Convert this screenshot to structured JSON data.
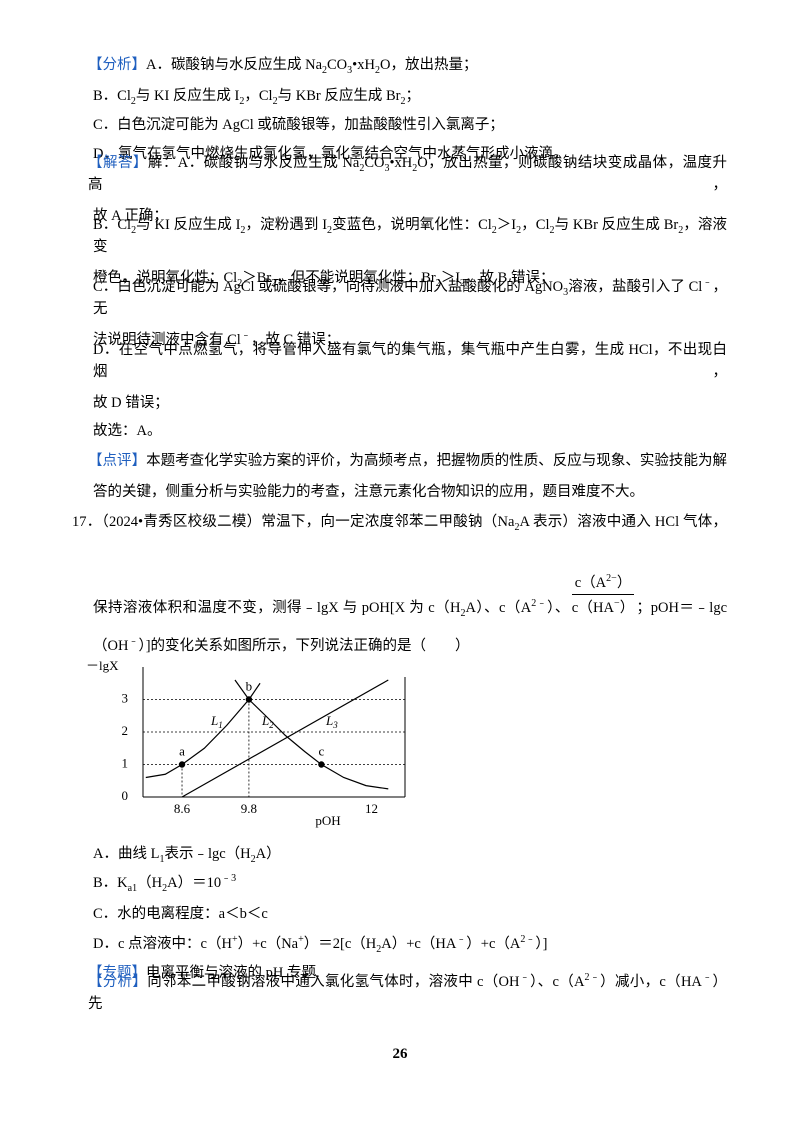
{
  "lines": [
    [
      {
        "tag": "【分析】"
      },
      "A．碳酸钠与水反应生成 Na",
      {
        "sub": "2"
      },
      "CO",
      {
        "sub": "3"
      },
      "•xH",
      {
        "sub": "2"
      },
      "O，放出热量；"
    ],
    [
      "B．Cl",
      {
        "sub": "2"
      },
      "与 KI 反应生成 I",
      {
        "sub": "2"
      },
      "，Cl",
      {
        "sub": "2"
      },
      "与 KBr 反应生成 Br",
      {
        "sub": "2"
      },
      "；"
    ],
    [
      "C．白色沉淀可能为 AgCl 或硫酸银等，加盐酸酸性引入氯离子；"
    ],
    [
      "D．氯气在氢气中燃烧生成氯化氢，氯化氢结合空气中水蒸气形成小液滴。"
    ],
    [
      {
        "tag": "【解答】"
      },
      "解：A．碳酸钠与水反应生成 Na",
      {
        "sub": "2"
      },
      "CO",
      {
        "sub": "3"
      },
      "•xH",
      {
        "sub": "2"
      },
      "O，放出热量，则碳酸钠结块变成晶体，温度升高，"
    ],
    [
      "故 A 正确；"
    ],
    [
      "B．Cl",
      {
        "sub": "2"
      },
      "与 KI 反应生成 I",
      {
        "sub": "2"
      },
      "，淀粉遇到 I",
      {
        "sub": "2"
      },
      "变蓝色，说明氧化性：Cl",
      {
        "sub": "2"
      },
      "＞I",
      {
        "sub": "2"
      },
      "，Cl",
      {
        "sub": "2"
      },
      "与 KBr 反应生成 Br",
      {
        "sub": "2"
      },
      "，溶液变"
    ],
    [
      "橙色，说明氧化性：Cl",
      {
        "sub": "2"
      },
      "＞Br",
      {
        "sub": "2"
      },
      "，但不能说明氧化性：Br",
      {
        "sub": "2"
      },
      "＞I",
      {
        "sub": "2"
      },
      "，故 B 错误；"
    ],
    [
      "C．白色沉淀可能为 AgCl 或硫酸银等，向待测液中加入盐酸酸化的 AgNO",
      {
        "sub": "3"
      },
      "溶液，盐酸引入了 Cl",
      {
        "sup": "﹣"
      },
      "，无"
    ],
    [
      "法说明待测液中含有 Cl",
      {
        "sup": "﹣"
      },
      "，故 C 错误；"
    ],
    [
      "D．在空气中点燃氢气，将导管伸入盛有氯气的集气瓶，集气瓶中产生白雾，生成 HCl，不出现白烟，"
    ],
    [
      "故 D 错误；"
    ],
    [
      "故选：A。"
    ],
    [
      {
        "tag": "【点评】"
      },
      "本题考查化学实验方案的评价，为高频考点，把握物质的性质、反应与现象、实验技能为解"
    ],
    [
      "答的关键，侧重分析与实验能力的考查，注意元素化合物知识的应用，题目难度不大。"
    ],
    [
      "17．（2024•青秀区校级二模）常温下，向一定浓度邻苯二甲酸钠（Na",
      {
        "sub": "2"
      },
      "A 表示）溶液中通入 HCl 气体，"
    ],
    [
      "保持溶液体积和温度不变，测得﹣lgX 与 pOH[X 为 c（H",
      {
        "sub": "2"
      },
      "A）、c（A",
      {
        "sup": "2﹣"
      },
      "）、",
      {
        "frac": {
          "num": [
            "c（A",
            {
              "sup": "2−"
            },
            "）"
          ],
          "den": [
            "c（HA",
            {
              "sup": "−"
            },
            "）"
          ]
        }
      },
      "；pOH＝﹣lgc"
    ],
    [
      "（OH",
      {
        "sup": "﹣"
      },
      "）]的变化关系如图所示，下列说法正确的是（　　）"
    ],
    [
      "A．曲线 L",
      {
        "sub": "1"
      },
      "表示﹣lgc（H",
      {
        "sub": "2"
      },
      "A）"
    ],
    [
      "B．K",
      {
        "sub": "a1"
      },
      "（H",
      {
        "sub": "2"
      },
      "A）＝10",
      {
        "sup": "﹣3"
      }
    ],
    [
      "C．水的电离程度：a＜b＜c"
    ],
    [
      "D．c 点溶液中：c（H",
      {
        "sup": "+"
      },
      "）+c（Na",
      {
        "sup": "+"
      },
      "）＝2[c（H",
      {
        "sub": "2"
      },
      "A）+c（HA",
      {
        "sup": "﹣"
      },
      "）+c（A",
      {
        "sup": "2﹣"
      },
      "）]"
    ],
    [
      {
        "tag": "【专题】"
      },
      "电离平衡与溶液的 pH 专题."
    ],
    [
      {
        "tag": "【分析】"
      },
      "向邻苯二甲酸钠溶液中通入氯化氢气体时，溶液中 c（OH",
      {
        "sup": "﹣"
      },
      "）、c（A",
      {
        "sup": "2﹣"
      },
      "）减小，c（HA",
      {
        "sup": "﹣"
      },
      "）先"
    ]
  ],
  "figure": {
    "type": "line",
    "ylabel": "－lgX",
    "xlabel": "pOH",
    "xlim": [
      7.9,
      12.6
    ],
    "ylim": [
      0,
      4
    ],
    "xticks": [
      8.6,
      9.8,
      12
    ],
    "yticks": [
      0,
      1,
      2,
      3
    ],
    "grid": true,
    "color": "#000000",
    "series": [
      {
        "label": [
          "L",
          {
            "sub": "1"
          }
        ],
        "x": [
          7.95,
          8.3,
          8.6,
          9.0,
          9.4,
          9.8,
          10.0
        ],
        "values": [
          0.6,
          0.7,
          1,
          1.5,
          2.2,
          3,
          3.5
        ]
      },
      {
        "label": [
          "L",
          {
            "sub": "2"
          }
        ],
        "x": [
          9.55,
          9.8,
          10.1,
          10.45,
          10.8,
          11.1,
          11.5,
          11.9,
          12.3
        ],
        "values": [
          3.6,
          3,
          2.5,
          1.9,
          1.4,
          1,
          0.6,
          0.35,
          0.25
        ]
      },
      {
        "label": [
          "L",
          {
            "sub": "3"
          }
        ],
        "x": [
          8.6,
          12.3
        ],
        "values": [
          0,
          3.6
        ]
      }
    ],
    "points": [
      {
        "label": "a",
        "x": 8.6,
        "y": 1
      },
      {
        "label": "b",
        "x": 9.8,
        "y": 3
      },
      {
        "label": "c",
        "x": 11.1,
        "y": 1
      }
    ]
  },
  "page_number": "26"
}
